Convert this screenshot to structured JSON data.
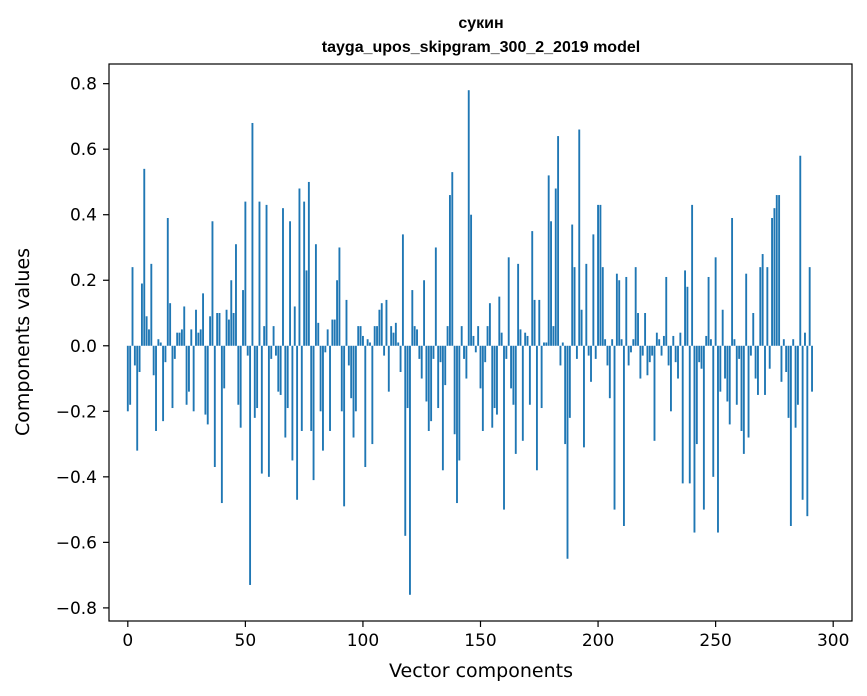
{
  "chart_data": {
    "type": "bar",
    "title": "сукин",
    "subtitle": "tayga_upos_skipgram_300_2_2019 model",
    "xlabel": "Vector components",
    "ylabel": "Components values",
    "xlim": [
      -8,
      308
    ],
    "ylim": [
      -0.84,
      0.86
    ],
    "xticks": [
      0,
      50,
      100,
      150,
      200,
      250,
      300
    ],
    "yticks": [
      -0.8,
      -0.6,
      -0.4,
      -0.2,
      0.0,
      0.2,
      0.4,
      0.6,
      0.8
    ],
    "ytick_labels": [
      "−0.8",
      "−0.6",
      "−0.4",
      "−0.2",
      "0.0",
      "0.2",
      "0.4",
      "0.6",
      "0.8"
    ],
    "grid": false,
    "bar_color": "#1f77b4",
    "values": [
      -0.2,
      -0.18,
      0.24,
      -0.06,
      -0.32,
      -0.08,
      0.19,
      0.54,
      0.09,
      0.05,
      0.25,
      -0.09,
      -0.26,
      0.02,
      0.01,
      -0.23,
      -0.05,
      0.39,
      0.13,
      -0.19,
      -0.04,
      0.04,
      0.04,
      0.05,
      0.12,
      -0.18,
      -0.14,
      0.05,
      -0.2,
      0.11,
      0.04,
      0.05,
      0.16,
      -0.21,
      -0.24,
      0.09,
      0.38,
      -0.37,
      0.1,
      0.1,
      -0.48,
      -0.13,
      0.11,
      0.08,
      0.2,
      0.1,
      0.31,
      -0.18,
      -0.25,
      0.17,
      0.44,
      -0.03,
      -0.73,
      0.68,
      -0.22,
      -0.19,
      0.44,
      -0.39,
      0.06,
      0.43,
      -0.4,
      -0.04,
      0.06,
      -0.03,
      -0.14,
      -0.15,
      0.42,
      -0.28,
      -0.19,
      0.38,
      -0.35,
      0.12,
      -0.47,
      0.48,
      -0.26,
      0.44,
      0.23,
      0.5,
      -0.26,
      -0.41,
      0.31,
      0.07,
      -0.2,
      -0.32,
      -0.02,
      0.05,
      -0.26,
      0.08,
      0.08,
      0.2,
      0.3,
      -0.2,
      -0.49,
      0.14,
      -0.06,
      -0.16,
      -0.28,
      -0.2,
      0.06,
      0.06,
      0.03,
      -0.37,
      0.02,
      0.01,
      -0.3,
      0.06,
      0.06,
      0.11,
      0.13,
      -0.03,
      0.14,
      -0.14,
      0.06,
      0.04,
      0.07,
      0.01,
      -0.08,
      0.34,
      -0.58,
      -0.19,
      -0.76,
      0.17,
      0.06,
      0.05,
      -0.04,
      -0.1,
      0.2,
      -0.17,
      -0.26,
      -0.23,
      -0.04,
      0.3,
      -0.19,
      -0.05,
      -0.38,
      -0.12,
      0.06,
      0.46,
      0.53,
      -0.27,
      -0.48,
      -0.35,
      0.06,
      -0.04,
      -0.1,
      0.78,
      0.4,
      0.03,
      -0.02,
      0.06,
      -0.13,
      -0.26,
      -0.05,
      0.06,
      0.13,
      -0.25,
      -0.19,
      -0.21,
      0.15,
      0.04,
      -0.5,
      -0.04,
      0.27,
      -0.13,
      -0.18,
      -0.33,
      0.25,
      0.05,
      -0.29,
      0.04,
      0.03,
      -0.18,
      0.35,
      0.14,
      -0.38,
      0.14,
      -0.19,
      0.01,
      0.01,
      0.52,
      0.38,
      0.06,
      0.48,
      0.64,
      -0.06,
      0.01,
      -0.3,
      -0.65,
      -0.22,
      0.37,
      0.24,
      -0.04,
      0.66,
      0.11,
      -0.31,
      0.25,
      -0.03,
      -0.11,
      0.34,
      -0.04,
      0.43,
      0.43,
      0.24,
      0.02,
      -0.06,
      -0.16,
      0.02,
      -0.5,
      0.22,
      0.2,
      0.02,
      -0.55,
      0.21,
      -0.06,
      -0.02,
      0.02,
      0.24,
      0.1,
      -0.1,
      -0.03,
      0.1,
      -0.09,
      -0.05,
      -0.03,
      -0.29,
      0.04,
      0.02,
      -0.03,
      0.03,
      0.21,
      -0.06,
      -0.2,
      0.03,
      -0.05,
      -0.1,
      0.04,
      -0.42,
      0.23,
      0.18,
      -0.42,
      0.43,
      -0.57,
      -0.3,
      -0.05,
      -0.07,
      -0.5,
      0.03,
      0.21,
      0.02,
      -0.4,
      0.27,
      -0.57,
      -0.14,
      0.11,
      -0.1,
      -0.17,
      -0.24,
      0.39,
      0.02,
      -0.18,
      -0.04,
      -0.26,
      -0.33,
      0.22,
      -0.28,
      -0.03,
      0.1,
      -0.1,
      -0.15,
      0.24,
      0.28,
      -0.15,
      0.24,
      -0.07,
      0.39,
      0.42,
      0.46,
      0.46,
      -0.11,
      0.02,
      -0.08,
      -0.22,
      -0.55,
      0.02,
      -0.25,
      -0.18,
      0.58,
      -0.47,
      0.04,
      -0.52,
      0.24,
      -0.14
    ]
  }
}
